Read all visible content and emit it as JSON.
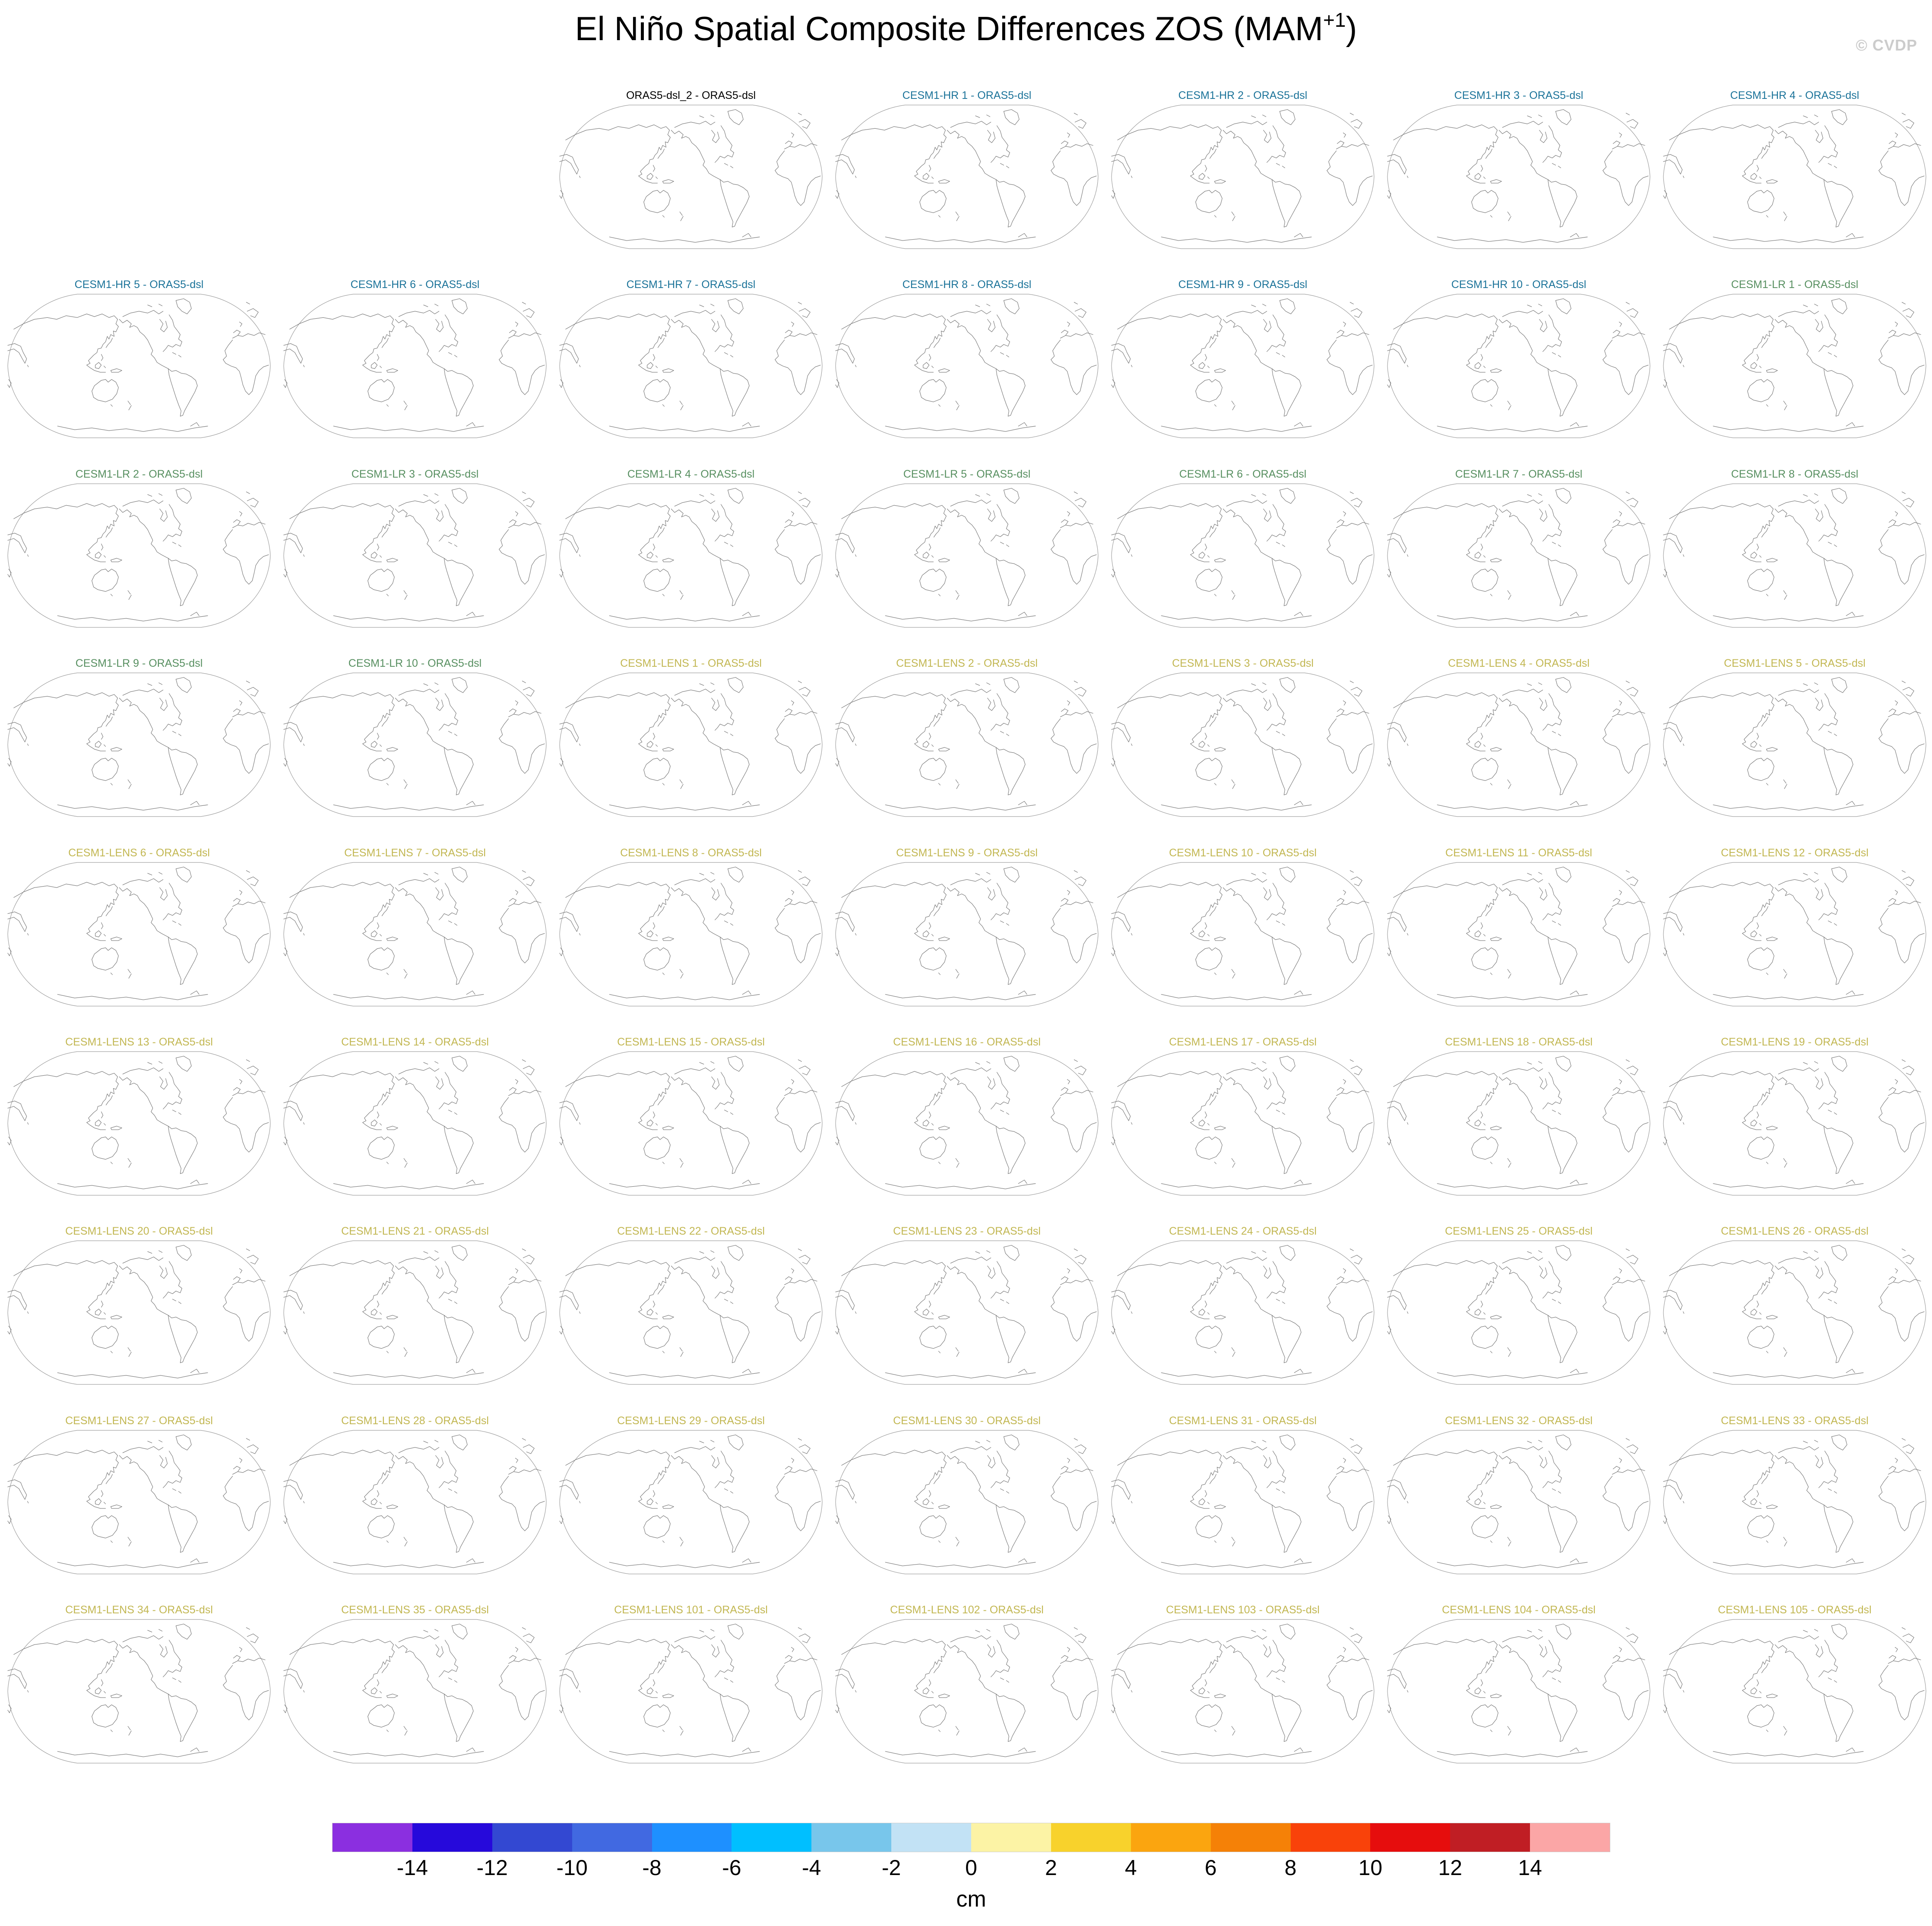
{
  "title": {
    "main": "El Niño Spatial Composite Differences ZOS (MAM",
    "superscript": "+1",
    "close": ")"
  },
  "watermark": "© CVDP",
  "legend_groups": {
    "observation": "#000000",
    "cesm1_hr": "#1B7399",
    "cesm1_lr": "#578F60",
    "cesm1_lens": "#C2B752"
  },
  "grid": {
    "columns": 7,
    "first_row_empty_cells": 2,
    "panels": [
      {
        "label": "ORAS5-dsl_2 - ORAS5-dsl",
        "group": "observation"
      },
      {
        "label": "CESM1-HR 1 - ORAS5-dsl",
        "group": "cesm1_hr"
      },
      {
        "label": "CESM1-HR 2 - ORAS5-dsl",
        "group": "cesm1_hr"
      },
      {
        "label": "CESM1-HR 3 - ORAS5-dsl",
        "group": "cesm1_hr"
      },
      {
        "label": "CESM1-HR 4 - ORAS5-dsl",
        "group": "cesm1_hr"
      },
      {
        "label": "CESM1-HR 5 - ORAS5-dsl",
        "group": "cesm1_hr"
      },
      {
        "label": "CESM1-HR 6 - ORAS5-dsl",
        "group": "cesm1_hr"
      },
      {
        "label": "CESM1-HR 7 - ORAS5-dsl",
        "group": "cesm1_hr"
      },
      {
        "label": "CESM1-HR 8 - ORAS5-dsl",
        "group": "cesm1_hr"
      },
      {
        "label": "CESM1-HR 9 - ORAS5-dsl",
        "group": "cesm1_hr"
      },
      {
        "label": "CESM1-HR 10 - ORAS5-dsl",
        "group": "cesm1_hr"
      },
      {
        "label": "CESM1-LR 1 - ORAS5-dsl",
        "group": "cesm1_lr"
      },
      {
        "label": "CESM1-LR 2 - ORAS5-dsl",
        "group": "cesm1_lr"
      },
      {
        "label": "CESM1-LR 3 - ORAS5-dsl",
        "group": "cesm1_lr"
      },
      {
        "label": "CESM1-LR 4 - ORAS5-dsl",
        "group": "cesm1_lr"
      },
      {
        "label": "CESM1-LR 5 - ORAS5-dsl",
        "group": "cesm1_lr"
      },
      {
        "label": "CESM1-LR 6 - ORAS5-dsl",
        "group": "cesm1_lr"
      },
      {
        "label": "CESM1-LR 7 - ORAS5-dsl",
        "group": "cesm1_lr"
      },
      {
        "label": "CESM1-LR 8 - ORAS5-dsl",
        "group": "cesm1_lr"
      },
      {
        "label": "CESM1-LR 9 - ORAS5-dsl",
        "group": "cesm1_lr"
      },
      {
        "label": "CESM1-LR 10 - ORAS5-dsl",
        "group": "cesm1_lr"
      },
      {
        "label": "CESM1-LENS 1 - ORAS5-dsl",
        "group": "cesm1_lens"
      },
      {
        "label": "CESM1-LENS 2 - ORAS5-dsl",
        "group": "cesm1_lens"
      },
      {
        "label": "CESM1-LENS 3 - ORAS5-dsl",
        "group": "cesm1_lens"
      },
      {
        "label": "CESM1-LENS 4 - ORAS5-dsl",
        "group": "cesm1_lens"
      },
      {
        "label": "CESM1-LENS 5 - ORAS5-dsl",
        "group": "cesm1_lens"
      },
      {
        "label": "CESM1-LENS 6 - ORAS5-dsl",
        "group": "cesm1_lens"
      },
      {
        "label": "CESM1-LENS 7 - ORAS5-dsl",
        "group": "cesm1_lens"
      },
      {
        "label": "CESM1-LENS 8 - ORAS5-dsl",
        "group": "cesm1_lens"
      },
      {
        "label": "CESM1-LENS 9 - ORAS5-dsl",
        "group": "cesm1_lens"
      },
      {
        "label": "CESM1-LENS 10 - ORAS5-dsl",
        "group": "cesm1_lens"
      },
      {
        "label": "CESM1-LENS 11 - ORAS5-dsl",
        "group": "cesm1_lens"
      },
      {
        "label": "CESM1-LENS 12 - ORAS5-dsl",
        "group": "cesm1_lens"
      },
      {
        "label": "CESM1-LENS 13 - ORAS5-dsl",
        "group": "cesm1_lens"
      },
      {
        "label": "CESM1-LENS 14 - ORAS5-dsl",
        "group": "cesm1_lens"
      },
      {
        "label": "CESM1-LENS 15 - ORAS5-dsl",
        "group": "cesm1_lens"
      },
      {
        "label": "CESM1-LENS 16 - ORAS5-dsl",
        "group": "cesm1_lens"
      },
      {
        "label": "CESM1-LENS 17 - ORAS5-dsl",
        "group": "cesm1_lens"
      },
      {
        "label": "CESM1-LENS 18 - ORAS5-dsl",
        "group": "cesm1_lens"
      },
      {
        "label": "CESM1-LENS 19 - ORAS5-dsl",
        "group": "cesm1_lens"
      },
      {
        "label": "CESM1-LENS 20 - ORAS5-dsl",
        "group": "cesm1_lens"
      },
      {
        "label": "CESM1-LENS 21 - ORAS5-dsl",
        "group": "cesm1_lens"
      },
      {
        "label": "CESM1-LENS 22 - ORAS5-dsl",
        "group": "cesm1_lens"
      },
      {
        "label": "CESM1-LENS 23 - ORAS5-dsl",
        "group": "cesm1_lens"
      },
      {
        "label": "CESM1-LENS 24 - ORAS5-dsl",
        "group": "cesm1_lens"
      },
      {
        "label": "CESM1-LENS 25 - ORAS5-dsl",
        "group": "cesm1_lens"
      },
      {
        "label": "CESM1-LENS 26 - ORAS5-dsl",
        "group": "cesm1_lens"
      },
      {
        "label": "CESM1-LENS 27 - ORAS5-dsl",
        "group": "cesm1_lens"
      },
      {
        "label": "CESM1-LENS 28 - ORAS5-dsl",
        "group": "cesm1_lens"
      },
      {
        "label": "CESM1-LENS 29 - ORAS5-dsl",
        "group": "cesm1_lens"
      },
      {
        "label": "CESM1-LENS 30 - ORAS5-dsl",
        "group": "cesm1_lens"
      },
      {
        "label": "CESM1-LENS 31 - ORAS5-dsl",
        "group": "cesm1_lens"
      },
      {
        "label": "CESM1-LENS 32 - ORAS5-dsl",
        "group": "cesm1_lens"
      },
      {
        "label": "CESM1-LENS 33 - ORAS5-dsl",
        "group": "cesm1_lens"
      },
      {
        "label": "CESM1-LENS 34 - ORAS5-dsl",
        "group": "cesm1_lens"
      },
      {
        "label": "CESM1-LENS 35 - ORAS5-dsl",
        "group": "cesm1_lens"
      },
      {
        "label": "CESM1-LENS 101 - ORAS5-dsl",
        "group": "cesm1_lens"
      },
      {
        "label": "CESM1-LENS 102 - ORAS5-dsl",
        "group": "cesm1_lens"
      },
      {
        "label": "CESM1-LENS 103 - ORAS5-dsl",
        "group": "cesm1_lens"
      },
      {
        "label": "CESM1-LENS 104 - ORAS5-dsl",
        "group": "cesm1_lens"
      },
      {
        "label": "CESM1-LENS 105 - ORAS5-dsl",
        "group": "cesm1_lens"
      }
    ]
  },
  "colorbar": {
    "unit": "cm",
    "tick_labels": [
      "-14",
      "-12",
      "-10",
      "-8",
      "-6",
      "-4",
      "-2",
      "0",
      "2",
      "4",
      "6",
      "8",
      "10",
      "12",
      "14"
    ],
    "colors": [
      "#8B2FE0",
      "#2609DB",
      "#3348D2",
      "#4169E1",
      "#1E90FF",
      "#00BFFF",
      "#78C6EB",
      "#C2E2F5",
      "#FCF3A5",
      "#F8D22C",
      "#FBA50F",
      "#F58107",
      "#F9420A",
      "#E60D0D",
      "#C01E24",
      "#FBA6A6"
    ]
  },
  "chart_data": {
    "type": "heatmap",
    "title": "El Niño Spatial Composite Differences ZOS (MAM+1)",
    "subtitle": "",
    "panel_titles": [
      "ORAS5-dsl_2 - ORAS5-dsl",
      "CESM1-HR 1 - ORAS5-dsl",
      "CESM1-HR 2 - ORAS5-dsl",
      "CESM1-HR 3 - ORAS5-dsl",
      "CESM1-HR 4 - ORAS5-dsl",
      "CESM1-HR 5 - ORAS5-dsl",
      "CESM1-HR 6 - ORAS5-dsl",
      "CESM1-HR 7 - ORAS5-dsl",
      "CESM1-HR 8 - ORAS5-dsl",
      "CESM1-HR 9 - ORAS5-dsl",
      "CESM1-HR 10 - ORAS5-dsl",
      "CESM1-LR 1 - ORAS5-dsl",
      "CESM1-LR 2 - ORAS5-dsl",
      "CESM1-LR 3 - ORAS5-dsl",
      "CESM1-LR 4 - ORAS5-dsl",
      "CESM1-LR 5 - ORAS5-dsl",
      "CESM1-LR 6 - ORAS5-dsl",
      "CESM1-LR 7 - ORAS5-dsl",
      "CESM1-LR 8 - ORAS5-dsl",
      "CESM1-LR 9 - ORAS5-dsl",
      "CESM1-LR 10 - ORAS5-dsl",
      "CESM1-LENS 1 - ORAS5-dsl",
      "CESM1-LENS 2 - ORAS5-dsl",
      "CESM1-LENS 3 - ORAS5-dsl",
      "CESM1-LENS 4 - ORAS5-dsl",
      "CESM1-LENS 5 - ORAS5-dsl",
      "CESM1-LENS 6 - ORAS5-dsl",
      "CESM1-LENS 7 - ORAS5-dsl",
      "CESM1-LENS 8 - ORAS5-dsl",
      "CESM1-LENS 9 - ORAS5-dsl",
      "CESM1-LENS 10 - ORAS5-dsl",
      "CESM1-LENS 11 - ORAS5-dsl",
      "CESM1-LENS 12 - ORAS5-dsl",
      "CESM1-LENS 13 - ORAS5-dsl",
      "CESM1-LENS 14 - ORAS5-dsl",
      "CESM1-LENS 15 - ORAS5-dsl",
      "CESM1-LENS 16 - ORAS5-dsl",
      "CESM1-LENS 17 - ORAS5-dsl",
      "CESM1-LENS 18 - ORAS5-dsl",
      "CESM1-LENS 19 - ORAS5-dsl",
      "CESM1-LENS 20 - ORAS5-dsl",
      "CESM1-LENS 21 - ORAS5-dsl",
      "CESM1-LENS 22 - ORAS5-dsl",
      "CESM1-LENS 23 - ORAS5-dsl",
      "CESM1-LENS 24 - ORAS5-dsl",
      "CESM1-LENS 25 - ORAS5-dsl",
      "CESM1-LENS 26 - ORAS5-dsl",
      "CESM1-LENS 27 - ORAS5-dsl",
      "CESM1-LENS 28 - ORAS5-dsl",
      "CESM1-LENS 29 - ORAS5-dsl",
      "CESM1-LENS 30 - ORAS5-dsl",
      "CESM1-LENS 31 - ORAS5-dsl",
      "CESM1-LENS 32 - ORAS5-dsl",
      "CESM1-LENS 33 - ORAS5-dsl",
      "CESM1-LENS 34 - ORAS5-dsl",
      "CESM1-LENS 35 - ORAS5-dsl",
      "CESM1-LENS 101 - ORAS5-dsl",
      "CESM1-LENS 102 - ORAS5-dsl",
      "CESM1-LENS 103 - ORAS5-dsl",
      "CESM1-LENS 104 - ORAS5-dsl",
      "CESM1-LENS 105 - ORAS5-dsl"
    ],
    "colorbar_ticks": [
      -14,
      -12,
      -10,
      -8,
      -6,
      -4,
      -2,
      0,
      2,
      4,
      6,
      8,
      10,
      12,
      14
    ],
    "colorbar_unit": "cm",
    "value_range_shown": [
      -16,
      16
    ],
    "map_fill_values_visible": false,
    "note": "61 Robinson-projection world maps (Pacific-centered coastline outlines); no shaded anomaly fill is resolvable at this scale",
    "legend_position": "bottom"
  }
}
